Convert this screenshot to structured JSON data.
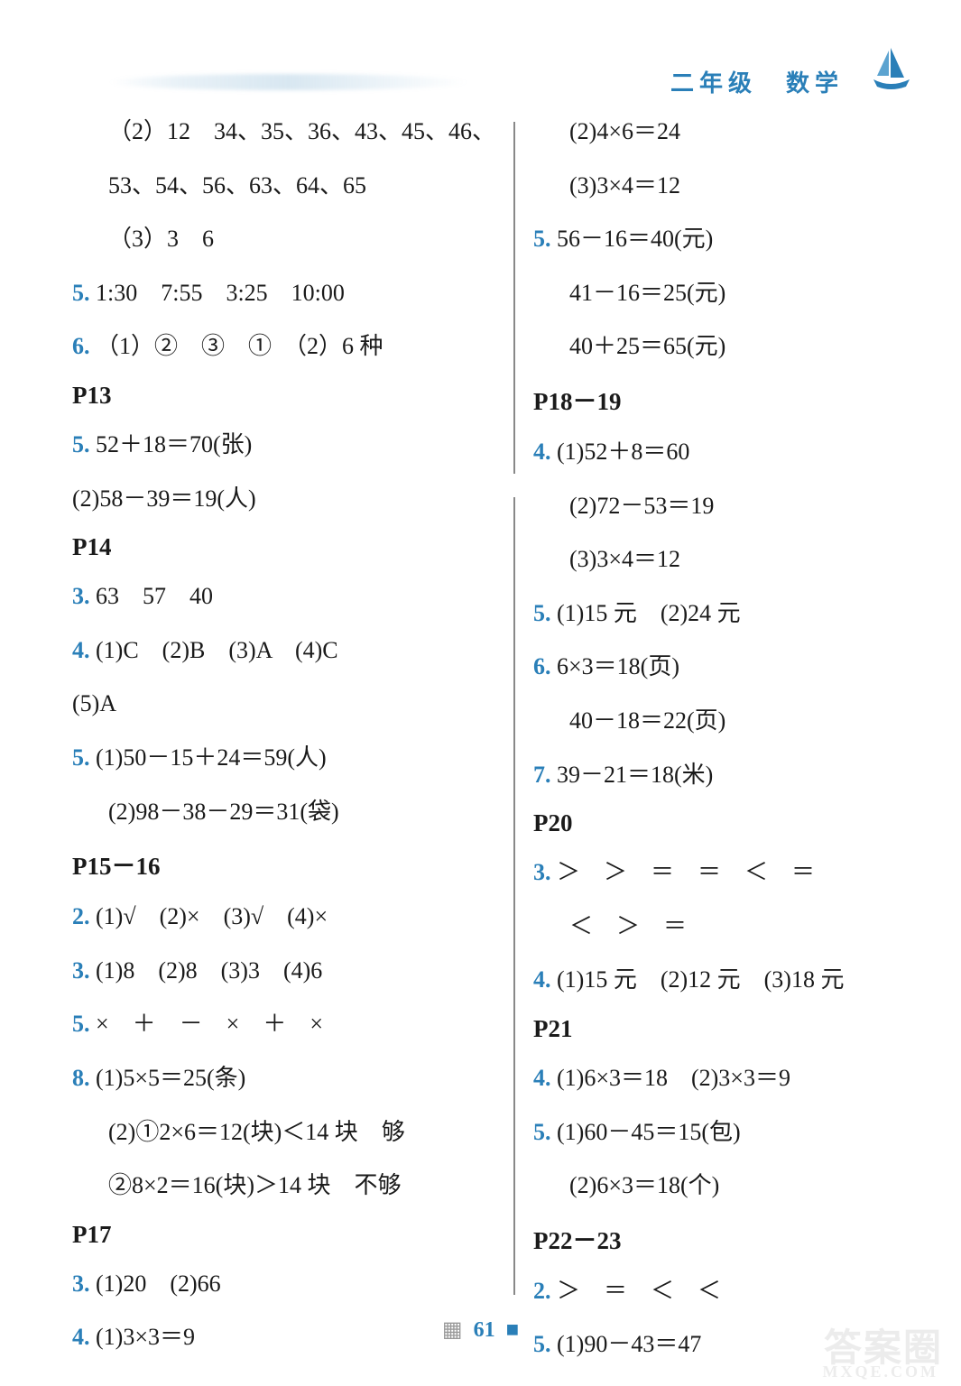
{
  "header": {
    "title": "二年级　数学"
  },
  "colors": {
    "accent": "#2a7fb8",
    "text": "#1a1a1a",
    "watermark": "rgba(200,200,200,0.35)"
  },
  "left_column": [
    {
      "type": "line",
      "indent": 1,
      "num": "",
      "text": "（2）12　34、35、36、43、45、46、"
    },
    {
      "type": "line",
      "indent": 1,
      "num": "",
      "text": "53、54、56、63、64、65"
    },
    {
      "type": "line",
      "indent": 1,
      "num": "",
      "text": "（3）3　6"
    },
    {
      "type": "line",
      "indent": 0,
      "num": "5.",
      "text": " 1:30　7:55　3:25　10:00"
    },
    {
      "type": "line",
      "indent": 0,
      "num": "6.",
      "text": " （1）②　③　①　（2）6 种"
    },
    {
      "type": "header",
      "text": "P13"
    },
    {
      "type": "line",
      "indent": 0,
      "num": "5.",
      "text": " 52＋18＝70(张)"
    },
    {
      "type": "line",
      "indent": 0,
      "num": "",
      "text": "(2)58－39＝19(人)"
    },
    {
      "type": "header",
      "text": "P14"
    },
    {
      "type": "line",
      "indent": 0,
      "num": "3.",
      "text": " 63　57　40"
    },
    {
      "type": "line",
      "indent": 0,
      "num": "4.",
      "text": " (1)C　(2)B　(3)A　(4)C"
    },
    {
      "type": "line",
      "indent": 0,
      "num": "",
      "text": "(5)A"
    },
    {
      "type": "line",
      "indent": 0,
      "num": "5.",
      "text": " (1)50－15＋24＝59(人)"
    },
    {
      "type": "line",
      "indent": 1,
      "num": "",
      "text": "(2)98－38－29＝31(袋)"
    },
    {
      "type": "header",
      "text": "P15－16"
    },
    {
      "type": "line",
      "indent": 0,
      "num": "2.",
      "text": " (1)√　(2)×　(3)√　(4)×"
    },
    {
      "type": "line",
      "indent": 0,
      "num": "3.",
      "text": " (1)8　(2)8　(3)3　(4)6"
    },
    {
      "type": "line",
      "indent": 0,
      "num": "5.",
      "text": " ×　＋　－　×　＋　×"
    },
    {
      "type": "line",
      "indent": 0,
      "num": "8.",
      "text": " (1)5×5＝25(条)"
    },
    {
      "type": "line",
      "indent": 1,
      "num": "",
      "text": "(2)①2×6＝12(块)＜14 块　够"
    },
    {
      "type": "line",
      "indent": 1,
      "num": "",
      "text": "②8×2＝16(块)＞14 块　不够"
    },
    {
      "type": "header",
      "text": "P17"
    },
    {
      "type": "line",
      "indent": 0,
      "num": "3.",
      "text": " (1)20　(2)66"
    },
    {
      "type": "line",
      "indent": 0,
      "num": "4.",
      "text": " (1)3×3＝9"
    }
  ],
  "right_column": [
    {
      "type": "line",
      "indent": 1,
      "num": "",
      "text": "(2)4×6＝24"
    },
    {
      "type": "line",
      "indent": 1,
      "num": "",
      "text": "(3)3×4＝12"
    },
    {
      "type": "line",
      "indent": 0,
      "num": "5.",
      "text": " 56－16＝40(元)"
    },
    {
      "type": "line",
      "indent": 1,
      "num": "",
      "text": "41－16＝25(元)"
    },
    {
      "type": "line",
      "indent": 1,
      "num": "",
      "text": "40＋25＝65(元)"
    },
    {
      "type": "header",
      "text": "P18－19"
    },
    {
      "type": "line",
      "indent": 0,
      "num": "4.",
      "text": " (1)52＋8＝60"
    },
    {
      "type": "line",
      "indent": 1,
      "num": "",
      "text": "(2)72－53＝19"
    },
    {
      "type": "line",
      "indent": 1,
      "num": "",
      "text": "(3)3×4＝12"
    },
    {
      "type": "line",
      "indent": 0,
      "num": "5.",
      "text": " (1)15 元　(2)24 元"
    },
    {
      "type": "line",
      "indent": 0,
      "num": "6.",
      "text": " 6×3＝18(页)"
    },
    {
      "type": "line",
      "indent": 1,
      "num": "",
      "text": "40－18＝22(页)"
    },
    {
      "type": "line",
      "indent": 0,
      "num": "7.",
      "text": " 39－21＝18(米)"
    },
    {
      "type": "header",
      "text": "P20"
    },
    {
      "type": "line",
      "indent": 0,
      "num": "3.",
      "text": " ＞　＞　＝　＝　＜　＝"
    },
    {
      "type": "line",
      "indent": 1,
      "num": "",
      "text": "＜　＞　＝"
    },
    {
      "type": "line",
      "indent": 0,
      "num": "4.",
      "text": " (1)15 元　(2)12 元　(3)18 元"
    },
    {
      "type": "header",
      "text": "P21"
    },
    {
      "type": "line",
      "indent": 0,
      "num": "4.",
      "text": " (1)6×3＝18　(2)3×3＝9"
    },
    {
      "type": "line",
      "indent": 0,
      "num": "5.",
      "text": " (1)60－45＝15(包)"
    },
    {
      "type": "line",
      "indent": 1,
      "num": "",
      "text": "(2)6×3＝18(个)"
    },
    {
      "type": "header",
      "text": "P22－23"
    },
    {
      "type": "line",
      "indent": 0,
      "num": "2.",
      "text": " ＞　＝　＜　＜"
    },
    {
      "type": "line",
      "indent": 0,
      "num": "5.",
      "text": " (1)90－43＝47"
    }
  ],
  "footer": {
    "page_number": "61"
  },
  "watermark": {
    "main": "答案圈",
    "sub": "MXQE.COM"
  }
}
